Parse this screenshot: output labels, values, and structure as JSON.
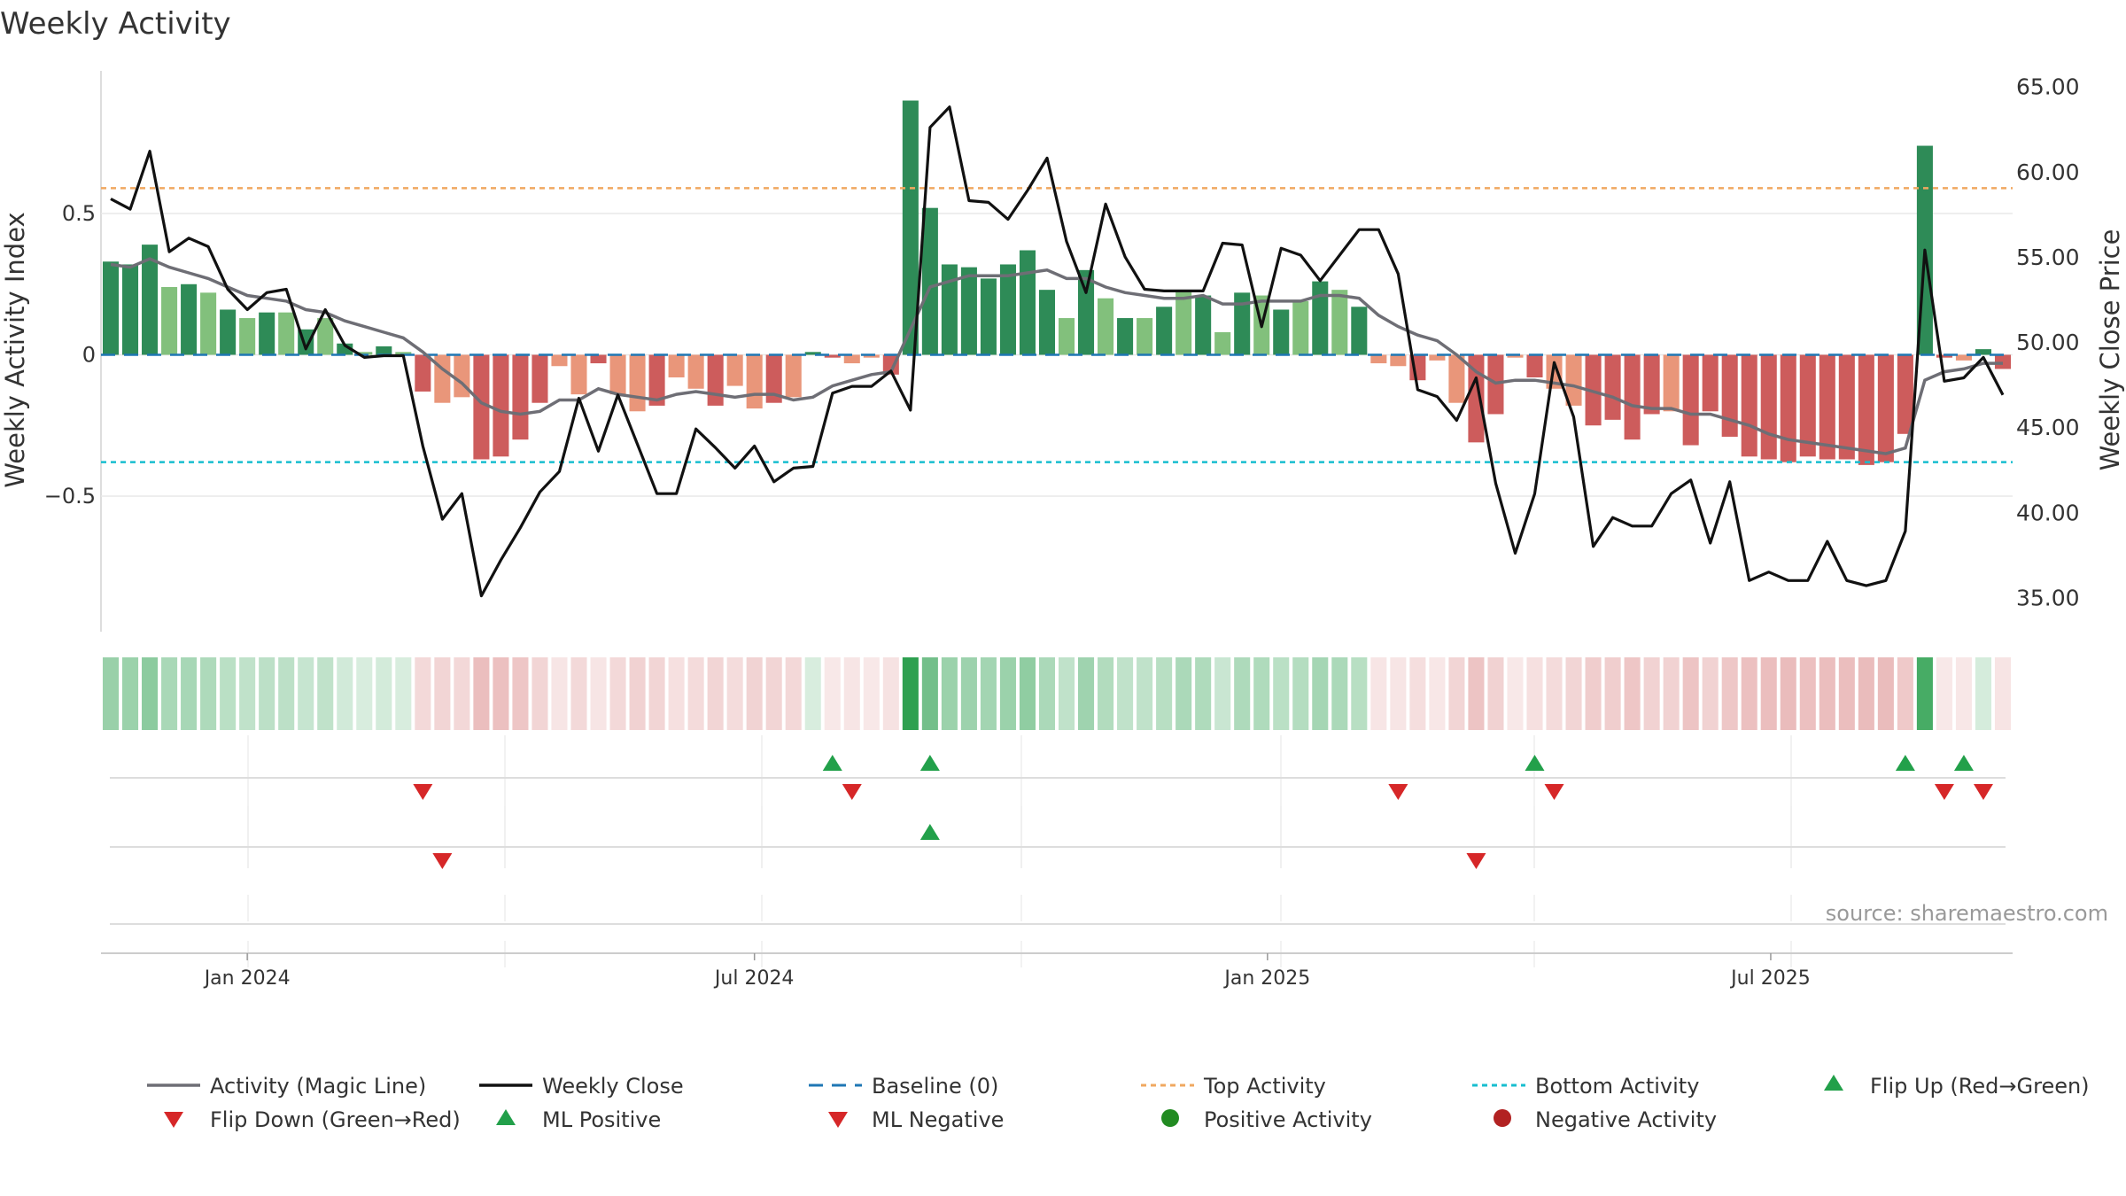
{
  "chart_data": {
    "type": "bar",
    "title": "Weekly Activity",
    "ylabel_left": "Weekly Activity Index",
    "ylabel_right": "Weekly Close Price",
    "source": "source: sharemaestro.com",
    "left_axis": {
      "ylim": [
        -0.98,
        0.98
      ],
      "ticks": [
        0.5,
        0,
        -0.5
      ],
      "tick_labels": [
        "0.5",
        "0",
        "−0.5"
      ]
    },
    "right_axis": {
      "ylim": [
        33.0,
        65.5
      ],
      "ticks": [
        65,
        60,
        55,
        50,
        45,
        40,
        35
      ],
      "tick_labels": [
        "65.00",
        "60.00",
        "55.00",
        "50.00",
        "45.00",
        "40.00",
        "35.00"
      ]
    },
    "x_ticks": [
      {
        "label": "Jan 2024",
        "week": 7.5
      },
      {
        "label": "Jul 2024",
        "week": 33.5
      },
      {
        "label": "Jan 2025",
        "week": 59.8
      },
      {
        "label": "Jul 2025",
        "week": 85.6
      }
    ],
    "top_activity": 0.59,
    "bottom_activity": -0.38,
    "activity_values": [
      0.33,
      0.32,
      0.39,
      0.24,
      0.25,
      0.22,
      0.16,
      0.13,
      0.15,
      0.15,
      0.09,
      0.13,
      0.04,
      0.01,
      0.03,
      0.01,
      -0.13,
      -0.17,
      -0.15,
      -0.37,
      -0.36,
      -0.3,
      -0.17,
      -0.04,
      -0.14,
      -0.03,
      -0.14,
      -0.2,
      -0.18,
      -0.08,
      -0.12,
      -0.18,
      -0.11,
      -0.19,
      -0.17,
      -0.15,
      0.01,
      -0.01,
      -0.03,
      -0.01,
      -0.07,
      0.9,
      0.52,
      0.32,
      0.31,
      0.27,
      0.32,
      0.37,
      0.23,
      0.13,
      0.3,
      0.2,
      0.13,
      0.13,
      0.17,
      0.23,
      0.21,
      0.08,
      0.22,
      0.21,
      0.16,
      0.19,
      0.26,
      0.23,
      0.17,
      -0.03,
      -0.04,
      -0.09,
      -0.02,
      -0.17,
      -0.31,
      -0.21,
      -0.01,
      -0.08,
      -0.12,
      -0.18,
      -0.25,
      -0.23,
      -0.3,
      -0.21,
      -0.2,
      -0.32,
      -0.2,
      -0.29,
      -0.36,
      -0.37,
      -0.38,
      -0.36,
      -0.37,
      -0.37,
      -0.39,
      -0.38,
      -0.28,
      0.74,
      -0.01,
      -0.02,
      0.02,
      -0.05
    ],
    "magic_line": [
      0.32,
      0.31,
      0.34,
      0.31,
      0.29,
      0.27,
      0.24,
      0.21,
      0.2,
      0.19,
      0.16,
      0.15,
      0.12,
      0.1,
      0.08,
      0.06,
      0.01,
      -0.05,
      -0.1,
      -0.17,
      -0.2,
      -0.21,
      -0.2,
      -0.16,
      -0.16,
      -0.12,
      -0.14,
      -0.15,
      -0.16,
      -0.14,
      -0.13,
      -0.14,
      -0.15,
      -0.14,
      -0.14,
      -0.16,
      -0.15,
      -0.11,
      -0.09,
      -0.07,
      -0.06,
      0.09,
      0.24,
      0.26,
      0.28,
      0.28,
      0.28,
      0.29,
      0.3,
      0.27,
      0.27,
      0.24,
      0.22,
      0.21,
      0.2,
      0.2,
      0.21,
      0.18,
      0.18,
      0.19,
      0.19,
      0.19,
      0.21,
      0.21,
      0.2,
      0.14,
      0.1,
      0.07,
      0.05,
      0.0,
      -0.06,
      -0.1,
      -0.09,
      -0.09,
      -0.1,
      -0.11,
      -0.13,
      -0.15,
      -0.18,
      -0.19,
      -0.19,
      -0.21,
      -0.21,
      -0.23,
      -0.25,
      -0.28,
      -0.3,
      -0.31,
      -0.32,
      -0.33,
      -0.34,
      -0.35,
      -0.33,
      -0.09,
      -0.06,
      -0.05,
      -0.03,
      -0.03
    ],
    "weekly_close": [
      58.4,
      57.8,
      61.2,
      55.3,
      56.1,
      55.6,
      53.1,
      51.9,
      52.9,
      53.1,
      49.6,
      51.9,
      49.8,
      49.1,
      49.2,
      49.2,
      43.9,
      39.6,
      41.1,
      35.1,
      37.2,
      39.1,
      41.2,
      42.4,
      46.7,
      43.6,
      46.9,
      44.0,
      41.1,
      41.1,
      44.9,
      43.8,
      42.6,
      43.9,
      41.8,
      42.6,
      42.7,
      47.0,
      47.4,
      47.4,
      48.3,
      46.0,
      62.6,
      63.8,
      58.3,
      58.2,
      57.2,
      58.9,
      60.8,
      55.9,
      52.9,
      58.1,
      55.0,
      53.1,
      53.0,
      53.0,
      53.0,
      55.8,
      55.7,
      50.9,
      55.5,
      55.1,
      53.6,
      55.1,
      56.6,
      56.6,
      54.0,
      47.2,
      46.8,
      45.4,
      47.9,
      41.7,
      37.6,
      41.1,
      48.8,
      45.6,
      38.0,
      39.7,
      39.2,
      39.2,
      41.1,
      41.9,
      38.2,
      41.8,
      36.0,
      36.5,
      36.0,
      36.0,
      38.3,
      36.0,
      35.7,
      36.0,
      38.9,
      55.4,
      47.7,
      47.9,
      49.1,
      46.9
    ],
    "strip1_up": [
      37,
      42,
      73,
      92,
      95
    ],
    "strip1_down": [
      16,
      38,
      66,
      74,
      94,
      96
    ],
    "strip2_up": [
      42
    ],
    "strip2_down": [
      17,
      70
    ],
    "legend": [
      "Activity (Magic Line)",
      "Weekly Close",
      "Baseline (0)",
      "Top Activity",
      "Bottom Activity",
      "Flip Up (Red→Green)",
      "Flip Down (Green→Red)",
      "ML Positive",
      "ML Negative",
      "Positive Activity",
      "Negative Activity"
    ],
    "colors": {
      "pos_strong": "#2e8b57",
      "pos_light": "#82c07c",
      "neg_strong": "#cd5c5c",
      "neg_light": "#e9967a",
      "magic": "#6e6e75",
      "close": "#111111",
      "baseline": "#1f77b4",
      "top": "#f0a860",
      "bottom": "#17becf",
      "up": "#22a04a",
      "down": "#d62728",
      "pos_dot": "#228b22",
      "neg_dot": "#b22222"
    }
  }
}
